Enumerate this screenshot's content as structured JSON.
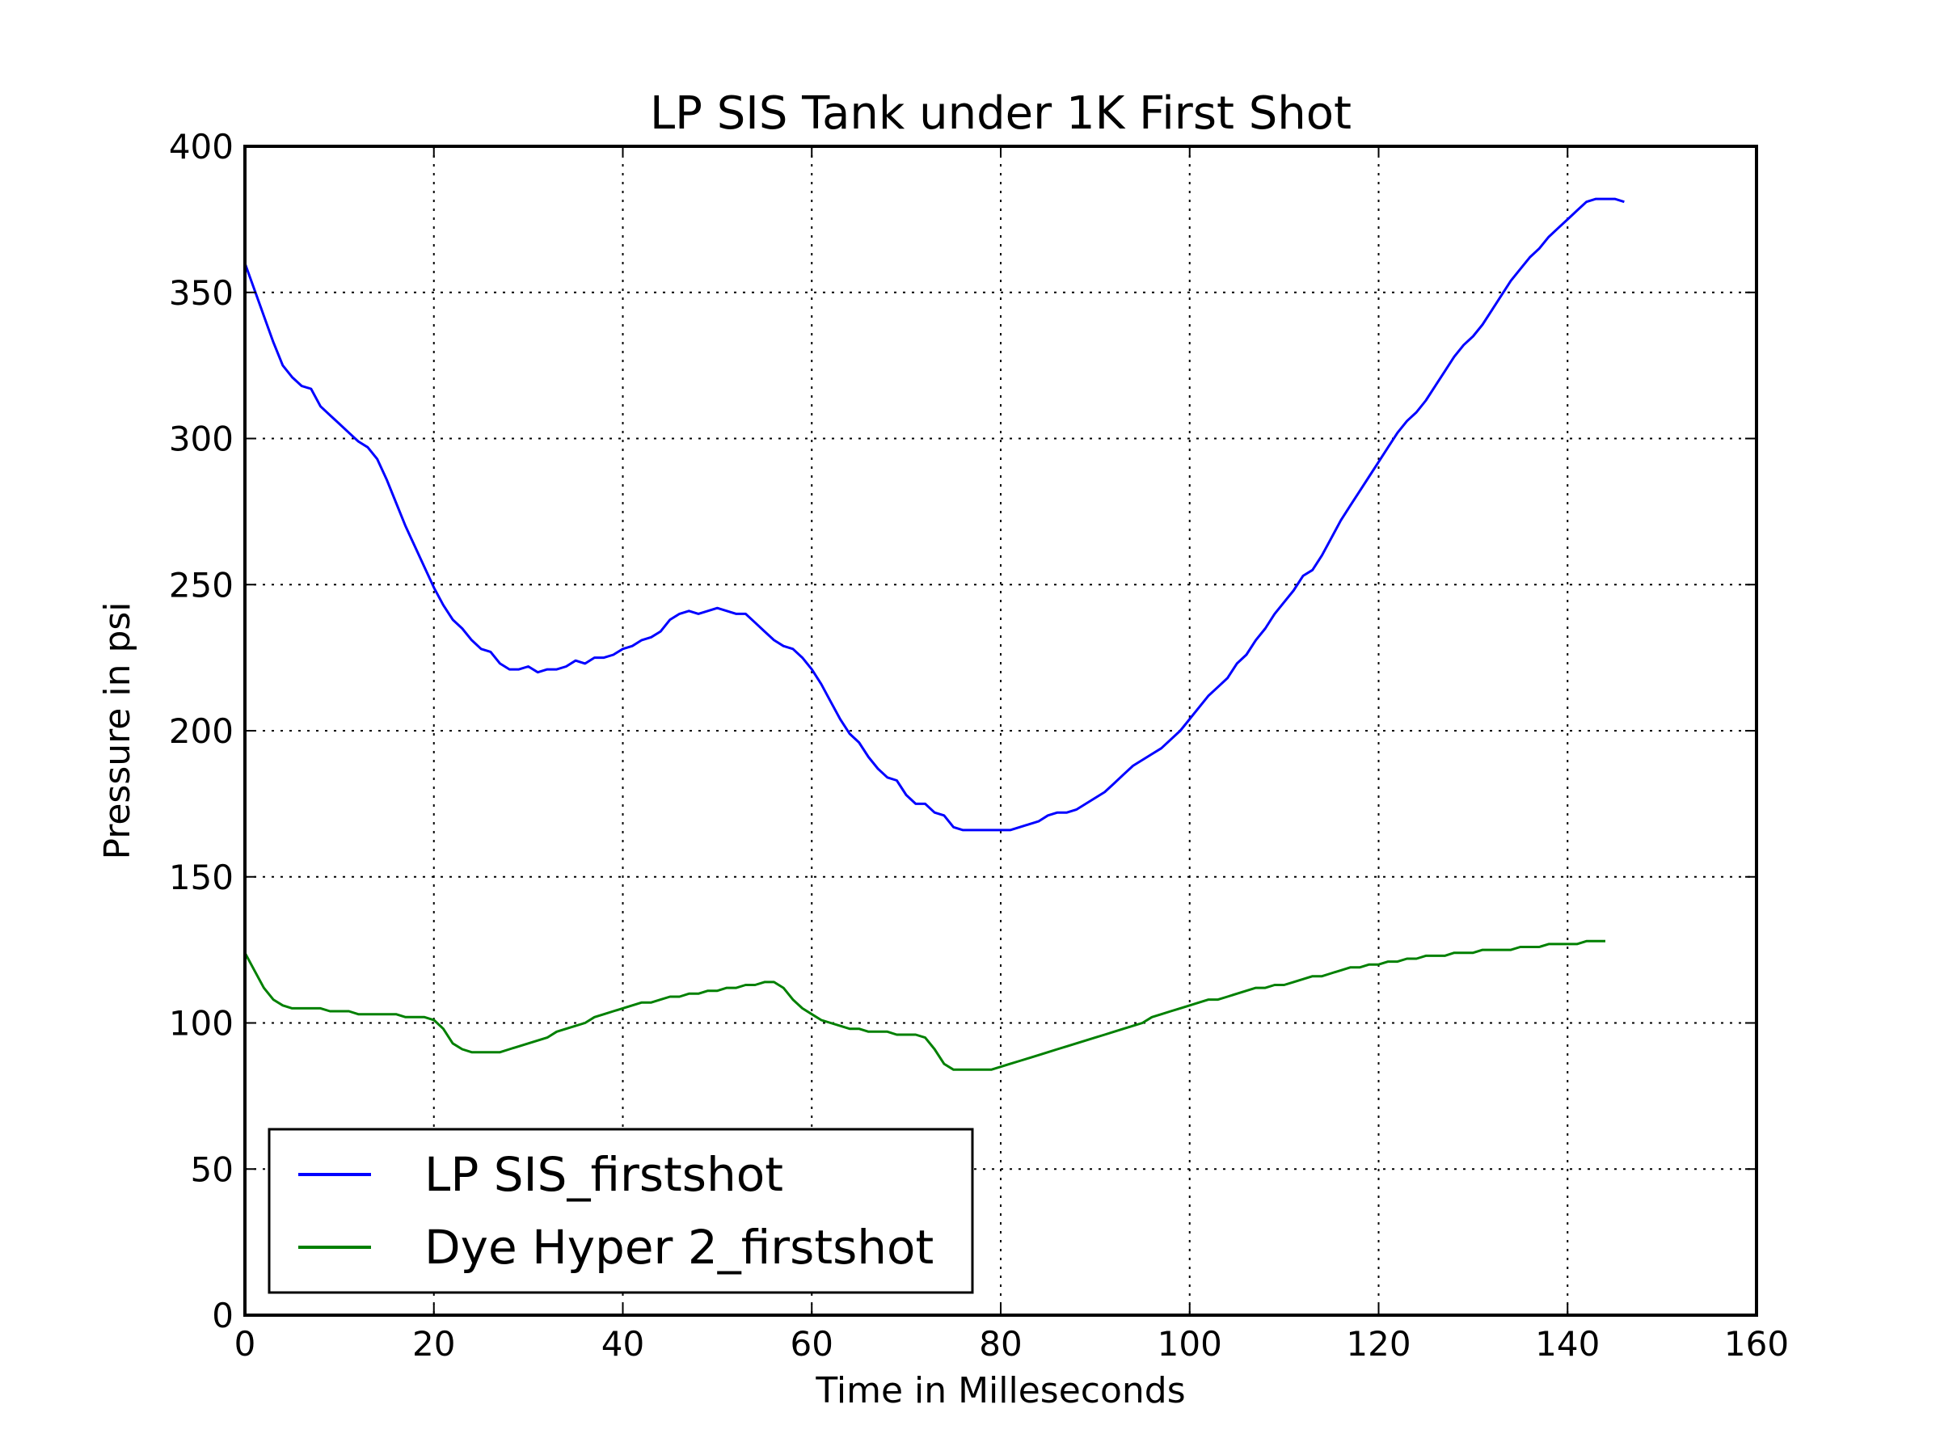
{
  "chart_data": {
    "type": "line",
    "title": "LP SIS Tank under 1K First Shot",
    "xlabel": "Time in Milleseconds",
    "ylabel": "Pressure in psi",
    "xlim": [
      0,
      160
    ],
    "ylim": [
      0,
      400
    ],
    "xticks": [
      "0",
      "20",
      "40",
      "60",
      "80",
      "100",
      "120",
      "140",
      "160"
    ],
    "yticks": [
      "0",
      "50",
      "100",
      "150",
      "200",
      "250",
      "300",
      "350",
      "400"
    ],
    "grid": true,
    "legend_position": "lower-left",
    "series": [
      {
        "name": "LP SIS_firstshot",
        "color": "#0000ff",
        "x": [
          0,
          1,
          2,
          3,
          4,
          5,
          6,
          7,
          8,
          9,
          10,
          11,
          12,
          13,
          14,
          15,
          16,
          17,
          18,
          19,
          20,
          21,
          22,
          23,
          24,
          25,
          26,
          27,
          28,
          29,
          30,
          31,
          32,
          33,
          34,
          35,
          36,
          37,
          38,
          39,
          40,
          41,
          42,
          43,
          44,
          45,
          46,
          47,
          48,
          49,
          50,
          51,
          52,
          53,
          54,
          55,
          56,
          57,
          58,
          59,
          60,
          61,
          62,
          63,
          64,
          65,
          66,
          67,
          68,
          69,
          70,
          71,
          72,
          73,
          74,
          75,
          76,
          77,
          78,
          79,
          80,
          81,
          82,
          83,
          84,
          85,
          86,
          87,
          88,
          89,
          90,
          91,
          92,
          93,
          94,
          95,
          96,
          97,
          98,
          99,
          100,
          101,
          102,
          103,
          104,
          105,
          106,
          107,
          108,
          109,
          110,
          111,
          112,
          113,
          114,
          115,
          116,
          117,
          118,
          119,
          120,
          121,
          122,
          123,
          124,
          125,
          126,
          127,
          128,
          129,
          130,
          131,
          132,
          133,
          134,
          135,
          136,
          137,
          138,
          139,
          140,
          141,
          142,
          143,
          144,
          145,
          146
        ],
        "values": [
          360,
          351,
          342,
          333,
          325,
          321,
          318,
          317,
          311,
          308,
          305,
          302,
          299,
          297,
          293,
          286,
          278,
          270,
          263,
          256,
          249,
          243,
          238,
          235,
          231,
          228,
          227,
          223,
          221,
          221,
          222,
          220,
          221,
          221,
          222,
          224,
          223,
          225,
          225,
          226,
          228,
          229,
          231,
          232,
          234,
          238,
          240,
          241,
          240,
          241,
          242,
          241,
          240,
          240,
          237,
          234,
          231,
          229,
          228,
          225,
          221,
          216,
          210,
          204,
          199,
          196,
          191,
          187,
          184,
          183,
          178,
          175,
          175,
          172,
          171,
          167,
          166,
          166,
          166,
          166,
          166,
          166,
          167,
          168,
          169,
          171,
          172,
          172,
          173,
          175,
          177,
          179,
          182,
          185,
          188,
          190,
          192,
          194,
          197,
          200,
          204,
          208,
          212,
          215,
          218,
          223,
          226,
          231,
          235,
          240,
          244,
          248,
          253,
          255,
          260,
          266,
          272,
          277,
          282,
          287,
          292,
          297,
          302,
          306,
          309,
          313,
          318,
          323,
          328,
          332,
          335,
          339,
          344,
          349,
          354,
          358,
          362,
          365,
          369,
          372,
          375,
          378,
          381,
          382,
          382,
          382,
          381
        ]
      },
      {
        "name": "Dye Hyper 2_firstshot",
        "color": "#008000",
        "x": [
          0,
          1,
          2,
          3,
          4,
          5,
          6,
          7,
          8,
          9,
          10,
          11,
          12,
          13,
          14,
          15,
          16,
          17,
          18,
          19,
          20,
          21,
          22,
          23,
          24,
          25,
          26,
          27,
          28,
          29,
          30,
          31,
          32,
          33,
          34,
          35,
          36,
          37,
          38,
          39,
          40,
          41,
          42,
          43,
          44,
          45,
          46,
          47,
          48,
          49,
          50,
          51,
          52,
          53,
          54,
          55,
          56,
          57,
          58,
          59,
          60,
          61,
          62,
          63,
          64,
          65,
          66,
          67,
          68,
          69,
          70,
          71,
          72,
          73,
          74,
          75,
          76,
          77,
          78,
          79,
          80,
          81,
          82,
          83,
          84,
          85,
          86,
          87,
          88,
          89,
          90,
          91,
          92,
          93,
          94,
          95,
          96,
          97,
          98,
          99,
          100,
          101,
          102,
          103,
          104,
          105,
          106,
          107,
          108,
          109,
          110,
          111,
          112,
          113,
          114,
          115,
          116,
          117,
          118,
          119,
          120,
          121,
          122,
          123,
          124,
          125,
          126,
          127,
          128,
          129,
          130,
          131,
          132,
          133,
          134,
          135,
          136,
          137,
          138,
          139,
          140,
          141,
          142,
          143,
          144
        ],
        "values": [
          124,
          118,
          112,
          108,
          106,
          105,
          105,
          105,
          105,
          104,
          104,
          104,
          103,
          103,
          103,
          103,
          103,
          102,
          102,
          102,
          101,
          98,
          93,
          91,
          90,
          90,
          90,
          90,
          91,
          92,
          93,
          94,
          95,
          97,
          98,
          99,
          100,
          102,
          103,
          104,
          105,
          106,
          107,
          107,
          108,
          109,
          109,
          110,
          110,
          111,
          111,
          112,
          112,
          113,
          113,
          114,
          114,
          112,
          108,
          105,
          103,
          101,
          100,
          99,
          98,
          98,
          97,
          97,
          97,
          96,
          96,
          96,
          95,
          91,
          86,
          84,
          84,
          84,
          84,
          84,
          85,
          86,
          87,
          88,
          89,
          90,
          91,
          92,
          93,
          94,
          95,
          96,
          97,
          98,
          99,
          100,
          102,
          103,
          104,
          105,
          106,
          107,
          108,
          108,
          109,
          110,
          111,
          112,
          112,
          113,
          113,
          114,
          115,
          116,
          116,
          117,
          118,
          119,
          119,
          120,
          120,
          121,
          121,
          122,
          122,
          123,
          123,
          123,
          124,
          124,
          124,
          125,
          125,
          125,
          125,
          126,
          126,
          126,
          127,
          127,
          127,
          127,
          128,
          128,
          128
        ]
      }
    ]
  }
}
